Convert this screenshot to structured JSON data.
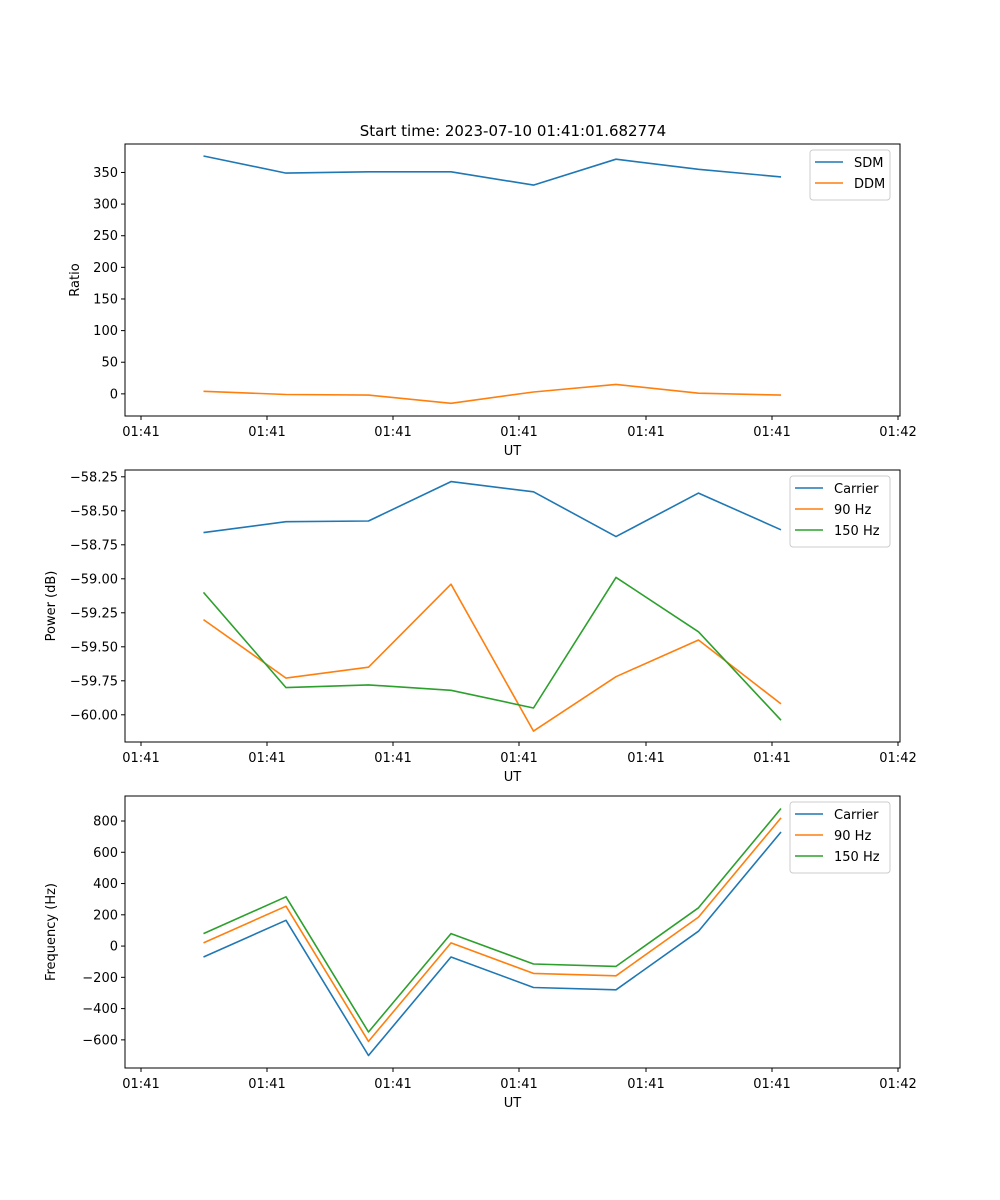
{
  "figure": {
    "title": "Start time: 2023-07-10 01:41:01.682774"
  },
  "chart_data": [
    {
      "type": "line",
      "xlabel": "UT",
      "ylabel": "Ratio",
      "x_tick_labels": [
        "01:41",
        "01:41",
        "01:41",
        "01:41",
        "01:41",
        "01:41",
        "01:42"
      ],
      "y_ticks": [
        0,
        50,
        100,
        150,
        200,
        250,
        300,
        350
      ],
      "y_tick_labels": [
        "0",
        "50",
        "100",
        "150",
        "200",
        "250",
        "300",
        "350"
      ],
      "ylim": [
        -35,
        395
      ],
      "x": [
        1,
        2,
        3,
        4,
        5,
        6,
        7,
        8
      ],
      "series": [
        {
          "name": "SDM",
          "color": "#1f77b4",
          "values": [
            376,
            349,
            351,
            351,
            330,
            371,
            355,
            343
          ]
        },
        {
          "name": "DDM",
          "color": "#ff7f0e",
          "values": [
            4,
            -1,
            -2,
            -15,
            3,
            15,
            1,
            -2
          ]
        }
      ],
      "legend": "top-right"
    },
    {
      "type": "line",
      "xlabel": "UT",
      "ylabel": "Power (dB)",
      "x_tick_labels": [
        "01:41",
        "01:41",
        "01:41",
        "01:41",
        "01:41",
        "01:41",
        "01:42"
      ],
      "y_ticks": [
        -60.0,
        -59.75,
        -59.5,
        -59.25,
        -59.0,
        -58.75,
        -58.5,
        -58.25
      ],
      "y_tick_labels": [
        "−60.00",
        "−59.75",
        "−59.50",
        "−59.25",
        "−59.00",
        "−58.75",
        "−58.50",
        "−58.25"
      ],
      "ylim": [
        -60.2,
        -58.2
      ],
      "x": [
        1,
        2,
        3,
        4,
        5,
        6,
        7,
        8
      ],
      "series": [
        {
          "name": "Carrier",
          "color": "#1f77b4",
          "values": [
            -58.66,
            -58.58,
            -58.575,
            -58.285,
            -58.36,
            -58.69,
            -58.37,
            -58.64
          ]
        },
        {
          "name": "90 Hz",
          "color": "#ff7f0e",
          "values": [
            -59.3,
            -59.73,
            -59.65,
            -59.04,
            -60.12,
            -59.72,
            -59.45,
            -59.92
          ]
        },
        {
          "name": "150 Hz",
          "color": "#2ca02c",
          "values": [
            -59.1,
            -59.8,
            -59.78,
            -59.82,
            -59.95,
            -58.99,
            -59.39,
            -60.04
          ]
        }
      ],
      "legend": "top-right"
    },
    {
      "type": "line",
      "xlabel": "UT",
      "ylabel": "Frequency (Hz)",
      "x_tick_labels": [
        "01:41",
        "01:41",
        "01:41",
        "01:41",
        "01:41",
        "01:41",
        "01:42"
      ],
      "y_ticks": [
        -600,
        -400,
        -200,
        0,
        200,
        400,
        600,
        800
      ],
      "y_tick_labels": [
        "−600",
        "−400",
        "−200",
        "0",
        "200",
        "400",
        "600",
        "800"
      ],
      "ylim": [
        -780,
        960
      ],
      "x": [
        1,
        2,
        3,
        4,
        5,
        6,
        7,
        8
      ],
      "series": [
        {
          "name": "Carrier",
          "color": "#1f77b4",
          "values": [
            -70,
            165,
            -700,
            -70,
            -265,
            -280,
            95,
            730
          ]
        },
        {
          "name": "90 Hz",
          "color": "#ff7f0e",
          "values": [
            20,
            255,
            -610,
            20,
            -175,
            -190,
            185,
            820
          ]
        },
        {
          "name": "150 Hz",
          "color": "#2ca02c",
          "values": [
            80,
            315,
            -550,
            80,
            -115,
            -130,
            245,
            880
          ]
        }
      ],
      "legend": "top-right"
    }
  ]
}
